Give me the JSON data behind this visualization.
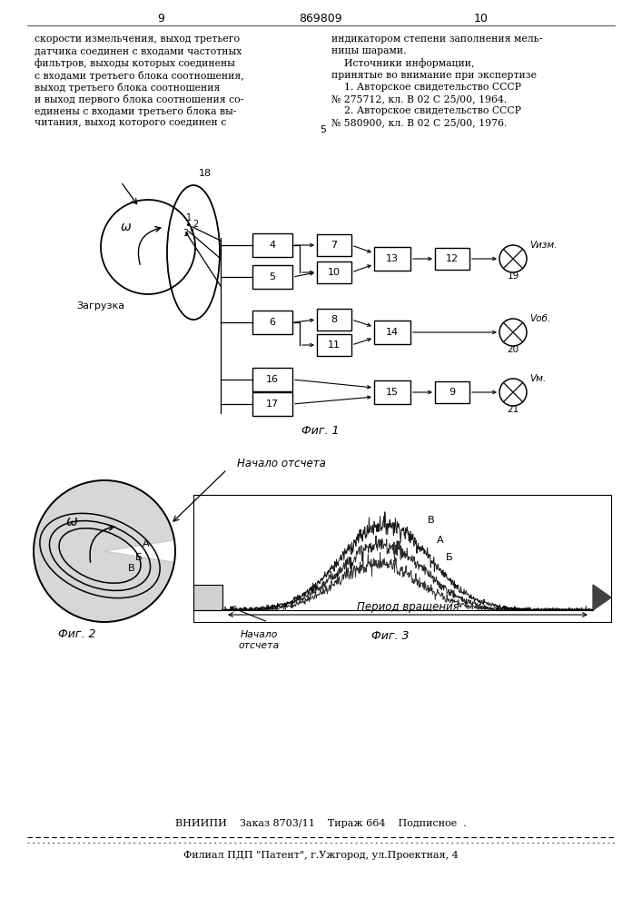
{
  "page_numbers": [
    "9",
    "869809",
    "10"
  ],
  "left_text": "скорости измельчения, выход третьего\nдатчика соединен с входами частотных\nфильтров, выходы которых соединены\nс входами третьего блока соотношения,\nвыход третьего блока соотношения\nи выход первого блока соотношения со-\nединены с входами третьего блока вы-\nчитания, выход которого соединен с",
  "right_text_1": "индикатором степени заполнения мель-",
  "right_text_2": "ницы шарами.",
  "right_text_3": "    Источники информации,",
  "right_text_4": "принятые во внимание при экспертизе",
  "right_text_5": "    1. Авторское свидетельство СССР",
  "right_text_6": "№ 275712, кл. В 02 С 25/00, 1964.",
  "right_text_7": "    2. Авторское свидетельство СССР",
  "right_text_8": "№ 580900, кл. В 02 С 25/00, 1976.",
  "fig1_label": "Фиг. 1",
  "fig2_label": "Фиг. 2",
  "fig3_label": "Фиг. 3",
  "nachaло_label": "Начало отсчета",
  "nacha2_label": "Начало\nотсчета",
  "period_label": "Период вращения",
  "zagruzka_label": "Загрузка",
  "omega_label": "ω",
  "vizm_label": "Vизм.",
  "vob_label": "Vоб.",
  "vim_label": "Vм.",
  "num_5": "5",
  "bottom_text1": "ВНИИПИ    Заказ 8703/11    Тираж 664    Подписное  .",
  "bottom_text2": "Филиал ПДП \"Патент\", г.Ужгород, ул.Проектная, 4",
  "bg_color": "#ffffff",
  "text_color": "#000000"
}
